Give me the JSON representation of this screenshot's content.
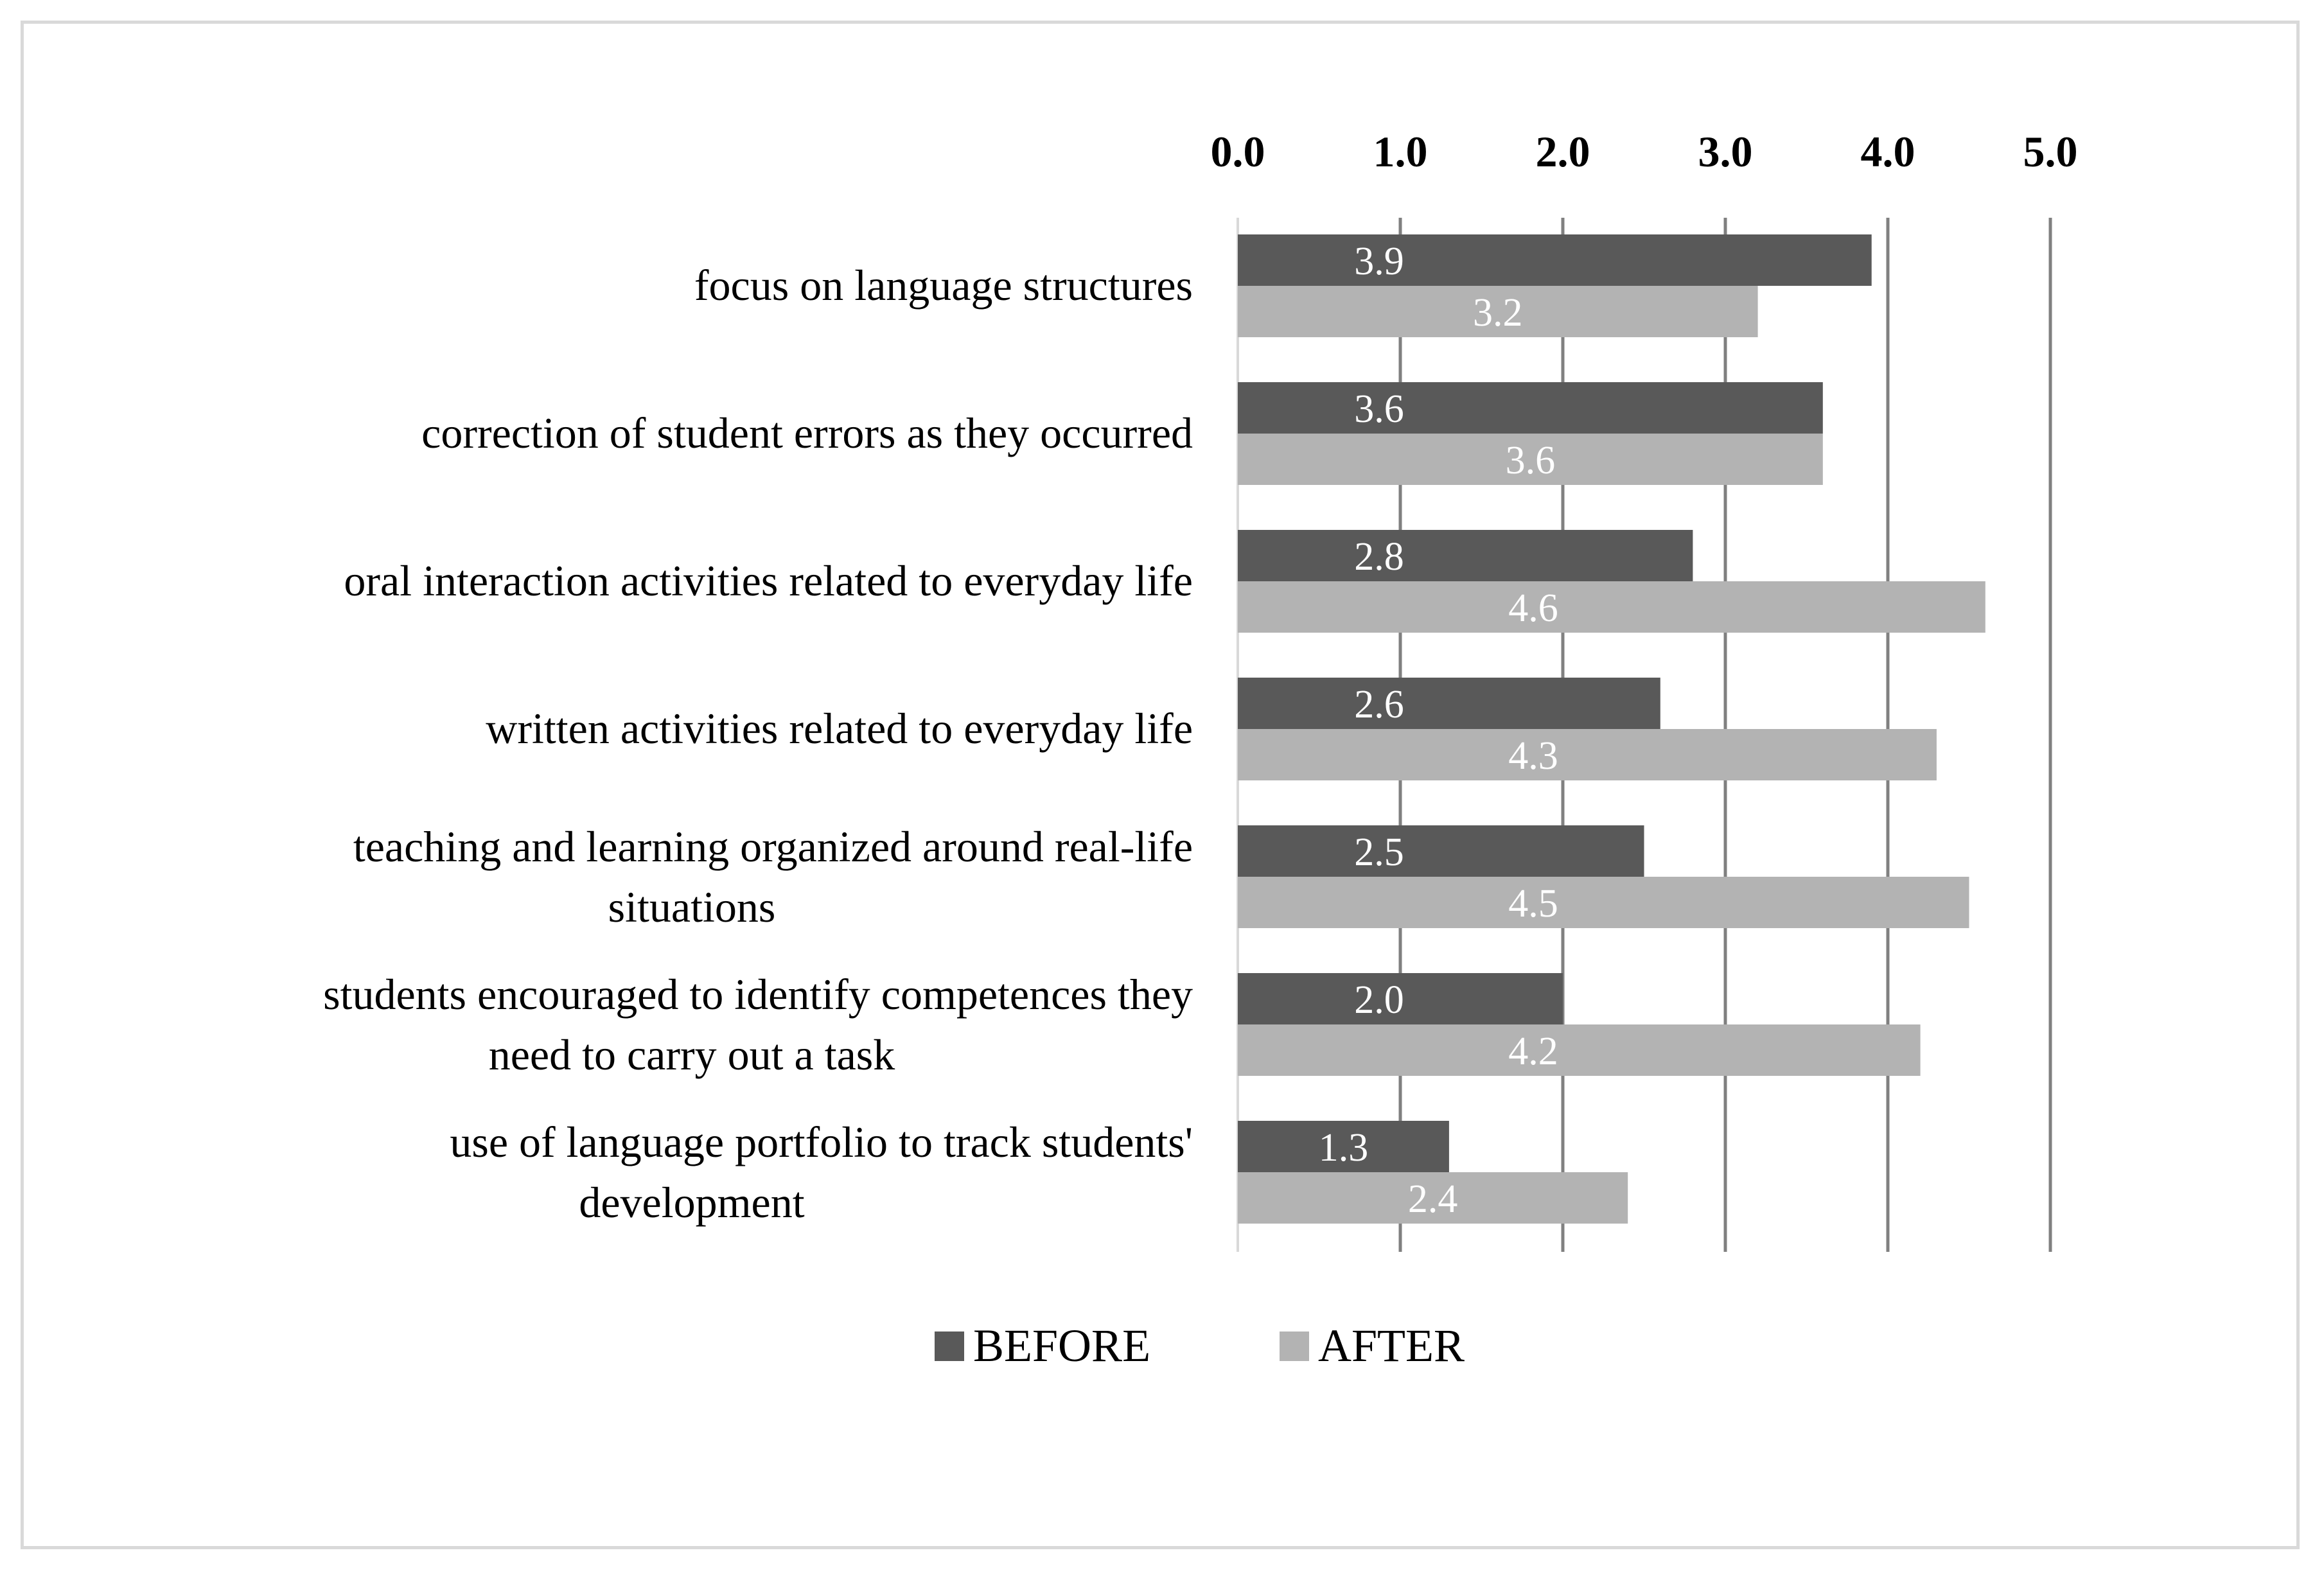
{
  "chart_data": {
    "type": "bar",
    "orientation": "horizontal",
    "title": "",
    "xlabel": "",
    "ylabel": "",
    "xlim": [
      0,
      5
    ],
    "x_ticks": [
      "0.0",
      "1.0",
      "2.0",
      "3.0",
      "4.0",
      "5.0"
    ],
    "x_axis_position": "top",
    "grid": true,
    "legend_position": "bottom",
    "categories": [
      [
        "focus on language structures"
      ],
      [
        "correction of student errors as they occurred"
      ],
      [
        "oral interaction activities related to everyday life"
      ],
      [
        "written activities related to everyday life"
      ],
      [
        "teaching and learning organized around real-life",
        "situations"
      ],
      [
        "students encouraged to identify competences they",
        "need to carry out a task"
      ],
      [
        "use of language portfolio to track students'",
        "development"
      ]
    ],
    "series": [
      {
        "name": "BEFORE",
        "color": "#595959",
        "values": [
          3.9,
          3.6,
          2.8,
          2.6,
          2.5,
          2.0,
          1.3
        ],
        "labels": [
          "3.9",
          "3.6",
          "2.8",
          "2.6",
          "2.5",
          "2.0",
          "1.3"
        ]
      },
      {
        "name": "AFTER",
        "color": "#b3b3b3",
        "values": [
          3.2,
          3.6,
          4.6,
          4.3,
          4.5,
          4.2,
          2.4
        ],
        "labels": [
          "3.2",
          "3.6",
          "4.6",
          "4.3",
          "4.5",
          "4.2",
          "2.4"
        ]
      }
    ],
    "gridline_color": "#808080"
  }
}
